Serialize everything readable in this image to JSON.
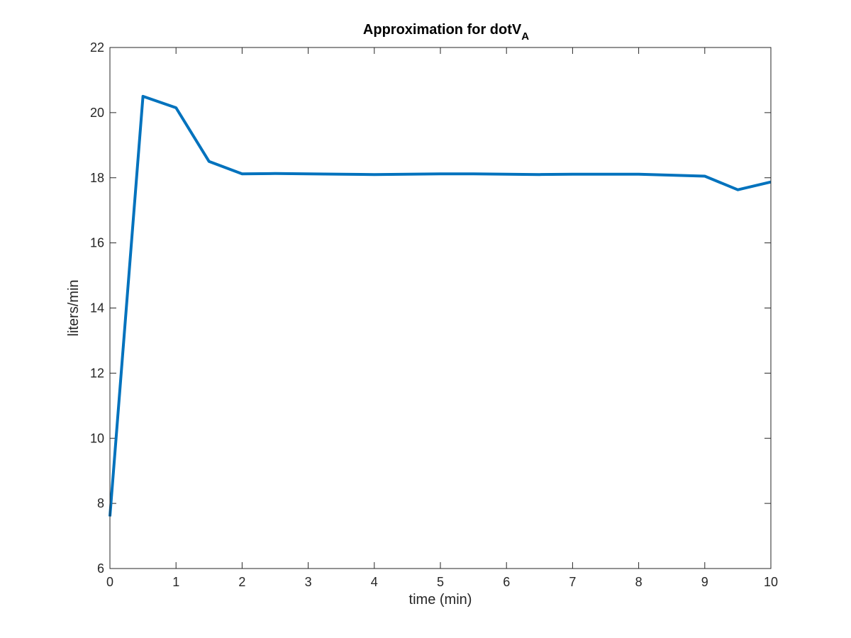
{
  "chart_data": {
    "type": "line",
    "title": "Approximation for dotV",
    "title_subscript": "A",
    "xlabel": "time (min)",
    "ylabel": "liters/min",
    "xlim": [
      0,
      10
    ],
    "ylim": [
      6,
      22
    ],
    "xticks": [
      0,
      1,
      2,
      3,
      4,
      5,
      6,
      7,
      8,
      9,
      10
    ],
    "yticks": [
      6,
      8,
      10,
      12,
      14,
      16,
      18,
      20,
      22
    ],
    "grid": false,
    "box": true,
    "colors": {
      "line": "#0072BD",
      "axis": "#262626"
    },
    "series": [
      {
        "x": [
          0,
          0.5,
          1,
          1.5,
          2,
          2.5,
          3,
          3.5,
          4,
          4.5,
          5,
          5.5,
          6,
          6.5,
          7,
          7.5,
          8,
          8.5,
          9,
          9.5,
          10
        ],
        "y": [
          7.6,
          20.5,
          20.15,
          18.5,
          18.12,
          18.13,
          18.12,
          18.11,
          18.1,
          18.11,
          18.12,
          18.12,
          18.11,
          18.1,
          18.11,
          18.11,
          18.11,
          18.08,
          18.05,
          17.63,
          17.87
        ]
      }
    ]
  }
}
